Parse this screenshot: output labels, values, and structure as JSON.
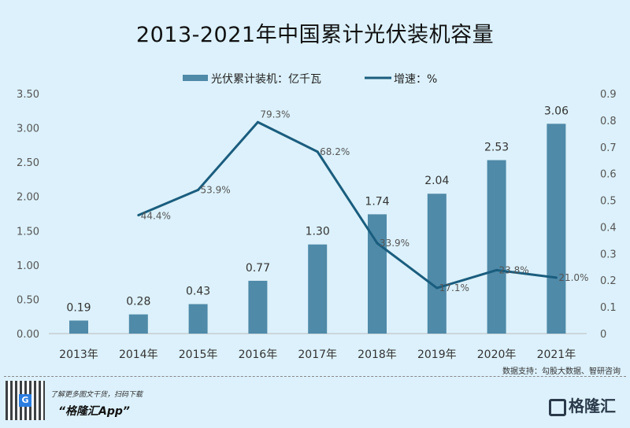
{
  "title": "2013-2021年中国累计光伏装机容量",
  "source": "数据支持：勾股大数据、智研咨询",
  "footer": {
    "promo": "了解更多图文干货，扫码下载",
    "app": "“格隆汇App”",
    "logo": "格隆汇"
  },
  "colors": {
    "bar": "#4f8aa8",
    "line": "#1a5d7e",
    "background": "#dcf1fb"
  },
  "chart_data": {
    "type": "bar+line",
    "categories": [
      "2013年",
      "2014年",
      "2015年",
      "2016年",
      "2017年",
      "2018年",
      "2019年",
      "2020年",
      "2021年"
    ],
    "series": [
      {
        "name": "光伏累计装机：亿千瓦",
        "type": "bar",
        "axis": "left",
        "values": [
          0.19,
          0.28,
          0.43,
          0.77,
          1.3,
          1.74,
          2.04,
          2.53,
          3.06
        ],
        "labels": [
          "0.19",
          "0.28",
          "0.43",
          "0.77",
          "1.30",
          "1.74",
          "2.04",
          "2.53",
          "3.06"
        ]
      },
      {
        "name": "增速：%",
        "type": "line",
        "axis": "right",
        "values": [
          null,
          0.444,
          0.539,
          0.793,
          0.682,
          0.339,
          0.171,
          0.238,
          0.21
        ],
        "labels": [
          "",
          "44.4%",
          "53.9%",
          "79.3%",
          "68.2%",
          "33.9%",
          "17.1%",
          "23.8%",
          "21.0%"
        ]
      }
    ],
    "y_left": {
      "range": [
        0,
        3.5
      ],
      "ticks": [
        "0.00",
        "0.50",
        "1.00",
        "1.50",
        "2.00",
        "2.50",
        "3.00",
        "3.50"
      ]
    },
    "y_right": {
      "range": [
        0,
        0.9
      ],
      "ticks": [
        "0",
        "0.1",
        "0.2",
        "0.3",
        "0.4",
        "0.5",
        "0.6",
        "0.7",
        "0.8",
        "0.9"
      ]
    },
    "grid": false,
    "legend": "top"
  }
}
